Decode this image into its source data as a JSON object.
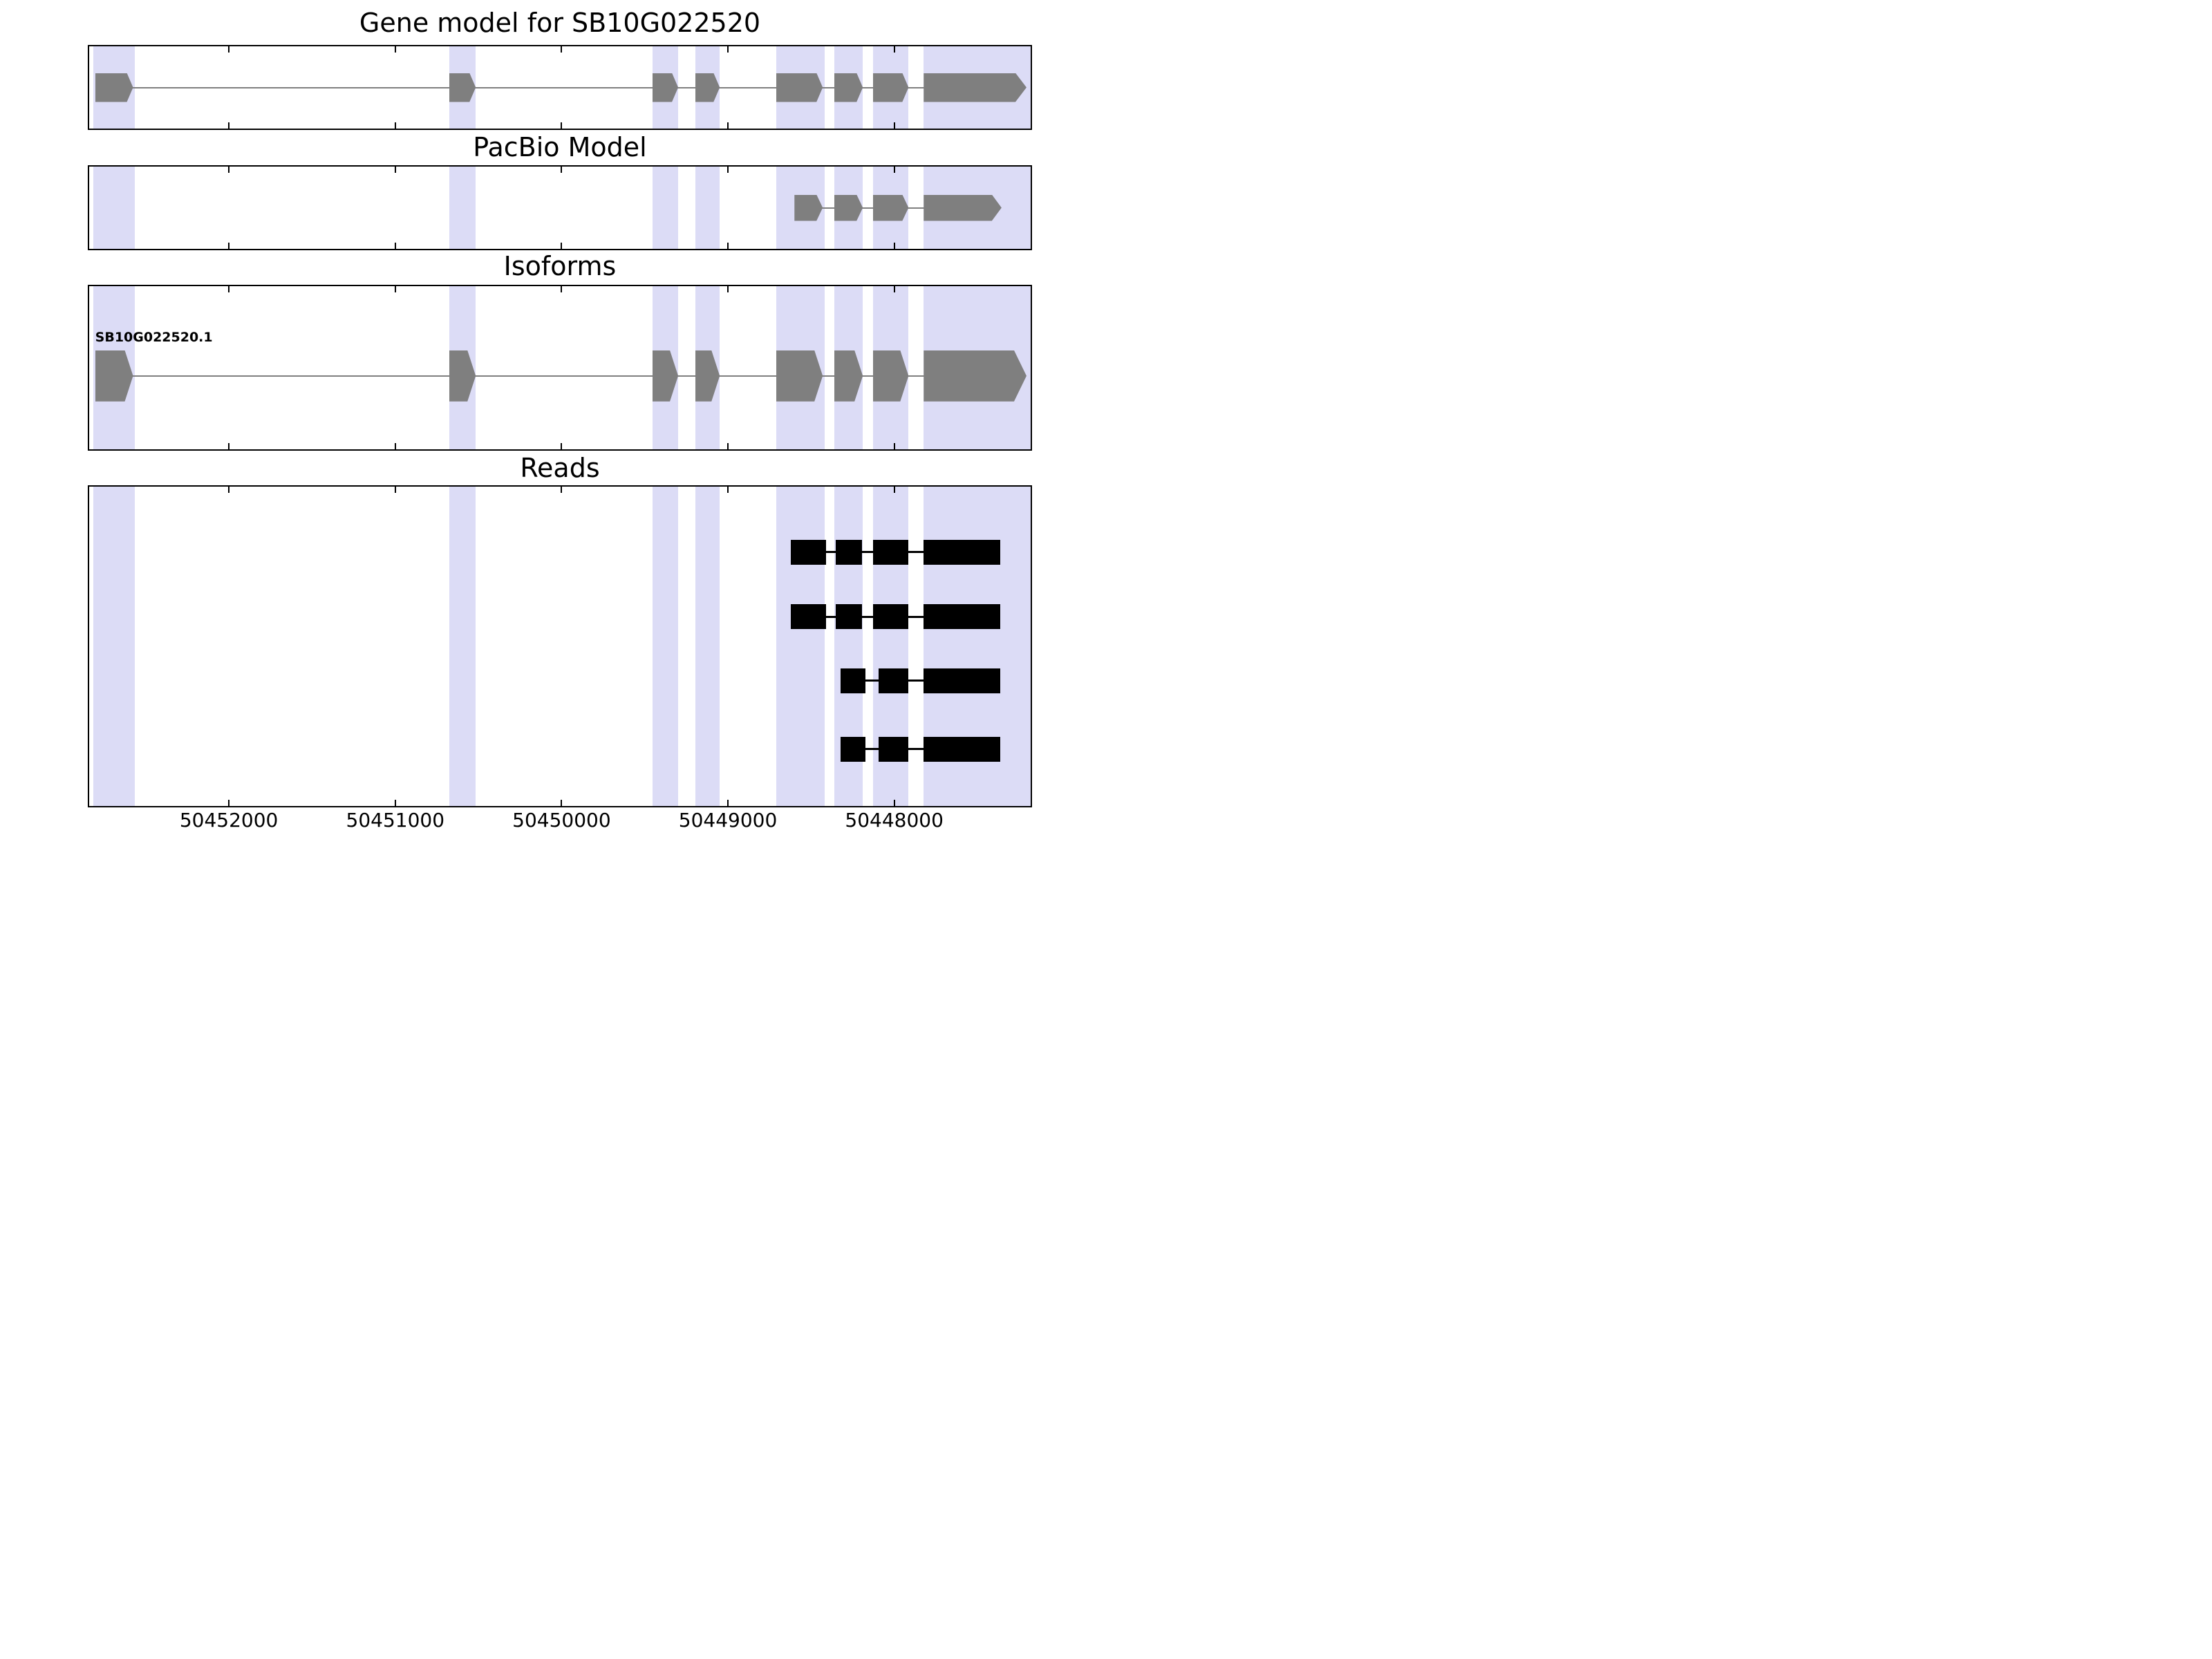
{
  "panels": {
    "gene_model": {
      "title": "Gene model for SB10G022520"
    },
    "pacbio": {
      "title": "PacBio Model"
    },
    "isoforms": {
      "title": "Isoforms"
    },
    "reads": {
      "title": "Reads"
    }
  },
  "colors": {
    "exon_fill": "#7f7f7f",
    "intron_line": "#7f7f7f",
    "highlight_band": "#dcdcf6",
    "read_fill": "#000000",
    "panel_border": "#000000",
    "text": "#000000",
    "background": "#ffffff"
  },
  "chart_data": {
    "type": "genome-tracks",
    "title": "Gene model for SB10G022520",
    "x_axis": {
      "min": 50447180,
      "max": 50452840,
      "reversed": true,
      "ticks": [
        50452000,
        50451000,
        50450000,
        50449000,
        50448000
      ],
      "tick_labels": [
        "50452000",
        "50451000",
        "50450000",
        "50449000",
        "50448000"
      ]
    },
    "highlight_bands": [
      [
        50452567,
        50452813
      ],
      [
        50450516,
        50450675
      ],
      [
        50449299,
        50449454
      ],
      [
        50449049,
        50449196
      ],
      [
        50448418,
        50448710
      ],
      [
        50448189,
        50448361
      ],
      [
        50447914,
        50448129
      ],
      [
        50447180,
        50447823
      ]
    ],
    "tracks": [
      {
        "id": "gene_model",
        "title": "Gene model for SB10G022520",
        "features": [
          {
            "label": "",
            "strand": "right",
            "exons": [
              [
                50452576,
                50452804
              ],
              [
                50450516,
                50450675
              ],
              [
                50449299,
                50449454
              ],
              [
                50449049,
                50449196
              ],
              [
                50448430,
                50448710
              ],
              [
                50448189,
                50448361
              ],
              [
                50447914,
                50448129
              ],
              [
                50447205,
                50447823
              ]
            ]
          }
        ]
      },
      {
        "id": "pacbio",
        "title": "PacBio Model",
        "features": [
          {
            "label": "",
            "strand": "right",
            "exons": [
              [
                50448430,
                50448600
              ],
              [
                50448189,
                50448361
              ],
              [
                50447914,
                50448129
              ],
              [
                50447355,
                50447823
              ]
            ]
          }
        ]
      },
      {
        "id": "isoforms",
        "title": "Isoforms",
        "features": [
          {
            "label": "SB10G022520.1",
            "strand": "right",
            "exons": [
              [
                50452576,
                50452804
              ],
              [
                50450516,
                50450675
              ],
              [
                50449299,
                50449454
              ],
              [
                50449049,
                50449196
              ],
              [
                50448430,
                50448710
              ],
              [
                50448189,
                50448361
              ],
              [
                50447914,
                50448129
              ],
              [
                50447205,
                50447823
              ]
            ]
          }
        ]
      },
      {
        "id": "reads",
        "title": "Reads",
        "features": [
          {
            "label": "",
            "strand": "none",
            "exons": [
              [
                50448409,
                50448624
              ],
              [
                50448194,
                50448353
              ],
              [
                50447914,
                50448129
              ],
              [
                50447363,
                50447823
              ]
            ]
          },
          {
            "label": "",
            "strand": "none",
            "exons": [
              [
                50448409,
                50448624
              ],
              [
                50448194,
                50448353
              ],
              [
                50447914,
                50448129
              ],
              [
                50447363,
                50447823
              ]
            ]
          },
          {
            "label": "",
            "strand": "none",
            "exons": [
              [
                50448173,
                50448323
              ],
              [
                50447914,
                50448095
              ],
              [
                50447363,
                50447823
              ]
            ]
          },
          {
            "label": "",
            "strand": "none",
            "exons": [
              [
                50448173,
                50448323
              ],
              [
                50447914,
                50448095
              ],
              [
                50447363,
                50447823
              ]
            ]
          }
        ]
      }
    ]
  }
}
